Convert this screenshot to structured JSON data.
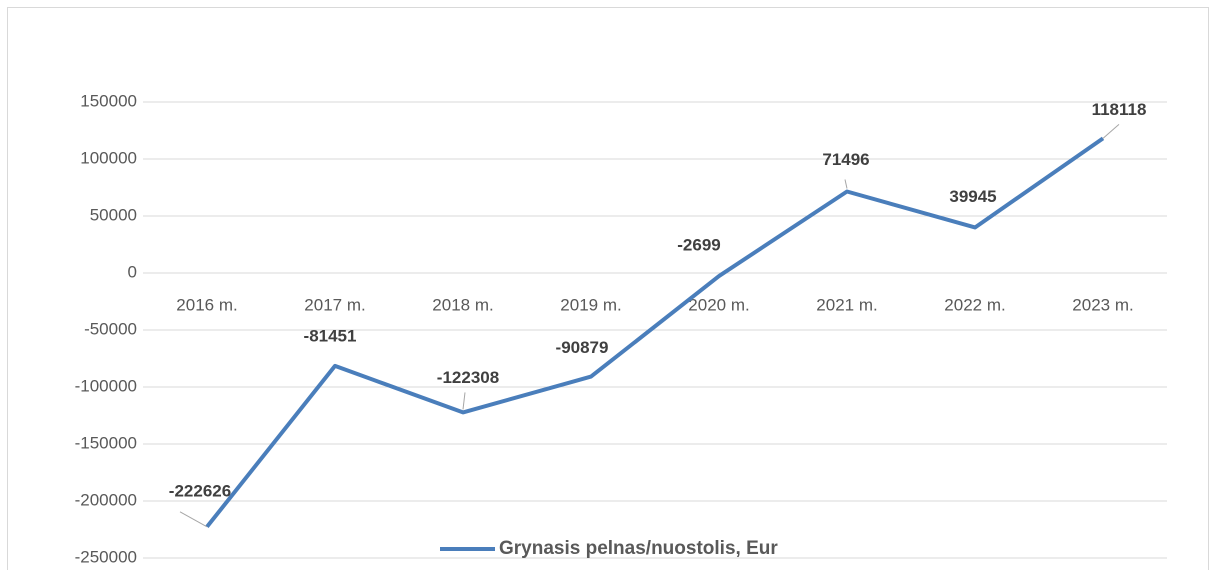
{
  "chart_data": {
    "type": "line",
    "categories": [
      "2016 m.",
      "2017 m.",
      "2018 m.",
      "2019 m.",
      "2020 m.",
      "2021 m.",
      "2022 m.",
      "2023 m."
    ],
    "series": [
      {
        "name": "Grynasis pelnas/nuostolis, Eur",
        "color": "#4a7ebb",
        "values": [
          -222626,
          -81451,
          -122308,
          -90879,
          -2699,
          71496,
          39945,
          118118
        ]
      }
    ],
    "ylim": [
      -250000,
      150000
    ],
    "yticks": [
      -250000,
      -200000,
      -150000,
      -100000,
      -50000,
      0,
      50000,
      100000,
      150000
    ],
    "grid": true,
    "legend": "bottom"
  }
}
